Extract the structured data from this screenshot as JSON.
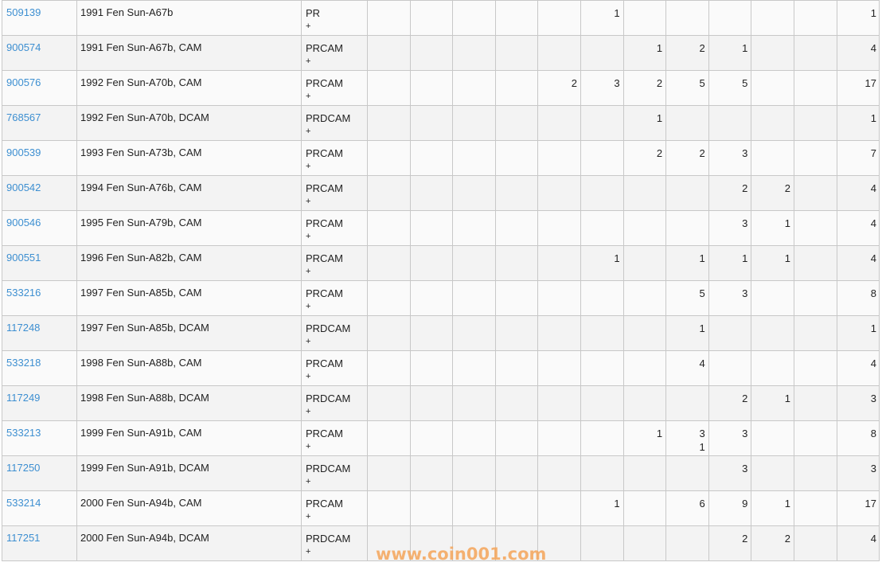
{
  "table": {
    "rows": [
      {
        "id": "509139",
        "desc": "1991 Fen Sun-A67b",
        "grade": "PR",
        "plus": "+",
        "counts": [
          "",
          "",
          "",
          "",
          "",
          "1",
          "",
          "",
          "",
          "",
          ""
        ],
        "plus_counts": [
          "",
          "",
          "",
          "",
          "",
          "",
          "",
          "",
          "",
          "",
          ""
        ],
        "total": "1"
      },
      {
        "id": "900574",
        "desc": "1991 Fen Sun-A67b, CAM",
        "grade": "PRCAM",
        "plus": "+",
        "counts": [
          "",
          "",
          "",
          "",
          "",
          "",
          "1",
          "2",
          "1",
          "",
          ""
        ],
        "plus_counts": [
          "",
          "",
          "",
          "",
          "",
          "",
          "",
          "",
          "",
          "",
          ""
        ],
        "total": "4"
      },
      {
        "id": "900576",
        "desc": "1992 Fen Sun-A70b, CAM",
        "grade": "PRCAM",
        "plus": "+",
        "counts": [
          "",
          "",
          "",
          "",
          "2",
          "3",
          "2",
          "5",
          "5",
          "",
          ""
        ],
        "plus_counts": [
          "",
          "",
          "",
          "",
          "",
          "",
          "",
          "",
          "",
          "",
          ""
        ],
        "total": "17"
      },
      {
        "id": "768567",
        "desc": "1992 Fen Sun-A70b, DCAM",
        "grade": "PRDCAM",
        "plus": "+",
        "counts": [
          "",
          "",
          "",
          "",
          "",
          "",
          "1",
          "",
          "",
          "",
          ""
        ],
        "plus_counts": [
          "",
          "",
          "",
          "",
          "",
          "",
          "",
          "",
          "",
          "",
          ""
        ],
        "total": "1"
      },
      {
        "id": "900539",
        "desc": "1993 Fen Sun-A73b, CAM",
        "grade": "PRCAM",
        "plus": "+",
        "counts": [
          "",
          "",
          "",
          "",
          "",
          "",
          "2",
          "2",
          "3",
          "",
          ""
        ],
        "plus_counts": [
          "",
          "",
          "",
          "",
          "",
          "",
          "",
          "",
          "",
          "",
          ""
        ],
        "total": "7"
      },
      {
        "id": "900542",
        "desc": "1994 Fen Sun-A76b, CAM",
        "grade": "PRCAM",
        "plus": "+",
        "counts": [
          "",
          "",
          "",
          "",
          "",
          "",
          "",
          "",
          "2",
          "2",
          ""
        ],
        "plus_counts": [
          "",
          "",
          "",
          "",
          "",
          "",
          "",
          "",
          "",
          "",
          ""
        ],
        "total": "4"
      },
      {
        "id": "900546",
        "desc": "1995 Fen Sun-A79b, CAM",
        "grade": "PRCAM",
        "plus": "+",
        "counts": [
          "",
          "",
          "",
          "",
          "",
          "",
          "",
          "",
          "3",
          "1",
          ""
        ],
        "plus_counts": [
          "",
          "",
          "",
          "",
          "",
          "",
          "",
          "",
          "",
          "",
          ""
        ],
        "total": "4"
      },
      {
        "id": "900551",
        "desc": "1996 Fen Sun-A82b, CAM",
        "grade": "PRCAM",
        "plus": "+",
        "counts": [
          "",
          "",
          "",
          "",
          "",
          "1",
          "",
          "1",
          "1",
          "1",
          ""
        ],
        "plus_counts": [
          "",
          "",
          "",
          "",
          "",
          "",
          "",
          "",
          "",
          "",
          ""
        ],
        "total": "4"
      },
      {
        "id": "533216",
        "desc": "1997 Fen Sun-A85b, CAM",
        "grade": "PRCAM",
        "plus": "+",
        "counts": [
          "",
          "",
          "",
          "",
          "",
          "",
          "",
          "5",
          "3",
          "",
          ""
        ],
        "plus_counts": [
          "",
          "",
          "",
          "",
          "",
          "",
          "",
          "",
          "",
          "",
          ""
        ],
        "total": "8"
      },
      {
        "id": "117248",
        "desc": "1997 Fen Sun-A85b, DCAM",
        "grade": "PRDCAM",
        "plus": "+",
        "counts": [
          "",
          "",
          "",
          "",
          "",
          "",
          "",
          "1",
          "",
          "",
          ""
        ],
        "plus_counts": [
          "",
          "",
          "",
          "",
          "",
          "",
          "",
          "",
          "",
          "",
          ""
        ],
        "total": "1"
      },
      {
        "id": "533218",
        "desc": "1998 Fen Sun-A88b, CAM",
        "grade": "PRCAM",
        "plus": "+",
        "counts": [
          "",
          "",
          "",
          "",
          "",
          "",
          "",
          "4",
          "",
          "",
          ""
        ],
        "plus_counts": [
          "",
          "",
          "",
          "",
          "",
          "",
          "",
          "",
          "",
          "",
          ""
        ],
        "total": "4"
      },
      {
        "id": "117249",
        "desc": "1998 Fen Sun-A88b, DCAM",
        "grade": "PRDCAM",
        "plus": "+",
        "counts": [
          "",
          "",
          "",
          "",
          "",
          "",
          "",
          "",
          "2",
          "1",
          ""
        ],
        "plus_counts": [
          "",
          "",
          "",
          "",
          "",
          "",
          "",
          "",
          "",
          "",
          ""
        ],
        "total": "3"
      },
      {
        "id": "533213",
        "desc": "1999 Fen Sun-A91b, CAM",
        "grade": "PRCAM",
        "plus": "+",
        "counts": [
          "",
          "",
          "",
          "",
          "",
          "",
          "1",
          "3",
          "3",
          "",
          ""
        ],
        "plus_counts": [
          "",
          "",
          "",
          "",
          "",
          "",
          "",
          "1",
          "",
          "",
          ""
        ],
        "total": "8"
      },
      {
        "id": "117250",
        "desc": "1999 Fen Sun-A91b, DCAM",
        "grade": "PRDCAM",
        "plus": "+",
        "counts": [
          "",
          "",
          "",
          "",
          "",
          "",
          "",
          "",
          "3",
          "",
          ""
        ],
        "plus_counts": [
          "",
          "",
          "",
          "",
          "",
          "",
          "",
          "",
          "",
          "",
          ""
        ],
        "total": "3"
      },
      {
        "id": "533214",
        "desc": "2000 Fen Sun-A94b, CAM",
        "grade": "PRCAM",
        "plus": "+",
        "counts": [
          "",
          "",
          "",
          "",
          "",
          "1",
          "",
          "6",
          "9",
          "1",
          ""
        ],
        "plus_counts": [
          "",
          "",
          "",
          "",
          "",
          "",
          "",
          "",
          "",
          "",
          ""
        ],
        "total": "17"
      },
      {
        "id": "117251",
        "desc": "2000 Fen Sun-A94b, DCAM",
        "grade": "PRDCAM",
        "plus": "+",
        "counts": [
          "",
          "",
          "",
          "",
          "",
          "",
          "",
          "",
          "2",
          "2",
          ""
        ],
        "plus_counts": [
          "",
          "",
          "",
          "",
          "",
          "",
          "",
          "",
          "",
          "",
          ""
        ],
        "total": "4"
      }
    ]
  },
  "watermark": "www.coin001.com",
  "colors": {
    "link": "#3d8fd1",
    "watermark": "#f5a55a",
    "row_odd": "#fafafa",
    "row_even": "#f3f3f3",
    "border": "#c8c8c8"
  }
}
